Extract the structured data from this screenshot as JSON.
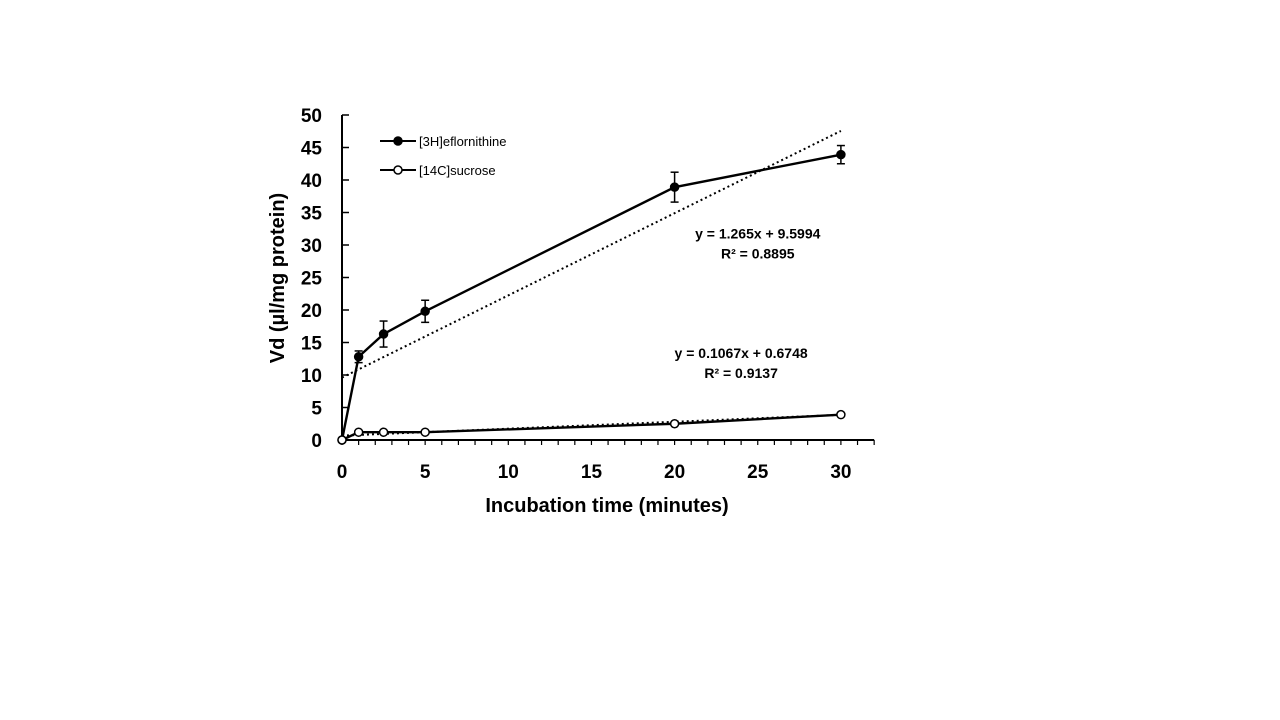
{
  "chart_data": {
    "type": "line",
    "title": "",
    "xlabel": "Incubation time (minutes)",
    "ylabel": "Vd (µl/mg protein)",
    "xlim": [
      0,
      32
    ],
    "ylim": [
      0,
      50
    ],
    "xticks": [
      0,
      5,
      10,
      15,
      20,
      25,
      30
    ],
    "yticks": [
      0,
      5,
      10,
      15,
      20,
      25,
      30,
      35,
      40,
      45,
      50
    ],
    "grid": false,
    "legend_position": "top-left",
    "series": [
      {
        "name": "[3H]eflornithine",
        "marker": "filled-circle",
        "color": "#000000",
        "x": [
          0,
          1,
          2.5,
          5,
          20,
          30
        ],
        "y": [
          0,
          12.8,
          16.3,
          19.8,
          38.9,
          43.9
        ],
        "error": [
          0,
          0.9,
          2.0,
          1.7,
          2.3,
          1.4
        ]
      },
      {
        "name": "[14C]sucrose",
        "marker": "open-circle",
        "color": "#000000",
        "x": [
          0,
          1,
          2.5,
          5,
          20,
          30
        ],
        "y": [
          0,
          1.2,
          1.2,
          1.2,
          2.5,
          3.9
        ],
        "error": [
          0,
          0.2,
          0.2,
          0.2,
          0.2,
          0.2
        ]
      }
    ],
    "trendlines": [
      {
        "series": "[3H]eflornithine",
        "slope": 1.265,
        "intercept": 9.5994,
        "x_range": [
          0,
          30
        ],
        "equation": "y = 1.265x + 9.5994",
        "r2": "R² = 0.8895",
        "label_anchor": [
          25,
          31
        ]
      },
      {
        "series": "[14C]sucrose",
        "slope": 0.1067,
        "intercept": 0.6748,
        "x_range": [
          0,
          30
        ],
        "equation": "y = 0.1067x + 0.6748",
        "r2": "R² = 0.9137",
        "label_anchor": [
          24,
          12.6
        ]
      }
    ]
  }
}
